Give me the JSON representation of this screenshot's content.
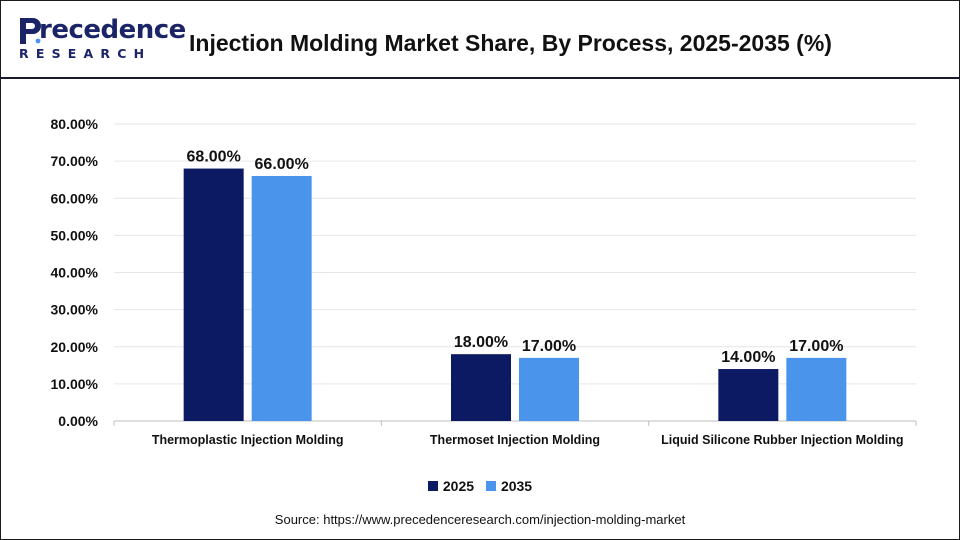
{
  "header": {
    "logo_top": "recedence",
    "logo_bottom": "RESEARCH",
    "title": "Injection Molding Market Share, By Process, 2025-2035 (%)"
  },
  "colors": {
    "brand": "#1a2466",
    "series_2025": "#0c1a63",
    "series_2035": "#4a94ec"
  },
  "chart_data": {
    "type": "bar",
    "title": "Injection Molding Market Share, By Process, 2025-2035 (%)",
    "categories": [
      "Thermoplastic Injection Molding",
      "Thermoset Injection Molding",
      "Liquid Silicone Rubber Injection Molding"
    ],
    "series": [
      {
        "name": "2025",
        "values": [
          68,
          18,
          14
        ],
        "labels": [
          "68.00%",
          "18.00%",
          "14.00%"
        ]
      },
      {
        "name": "2035",
        "values": [
          66,
          17,
          17
        ],
        "labels": [
          "66.00%",
          "17.00%",
          "17.00%"
        ]
      }
    ],
    "ylim": [
      0,
      80
    ],
    "yticks": [
      0,
      10,
      20,
      30,
      40,
      50,
      60,
      70,
      80
    ],
    "ytick_labels": [
      "0.00%",
      "10.00%",
      "20.00%",
      "30.00%",
      "40.00%",
      "50.00%",
      "60.00%",
      "70.00%",
      "80.00%"
    ],
    "grid": true,
    "legend": "bottom"
  },
  "legend": {
    "items": [
      {
        "label": "2025"
      },
      {
        "label": "2035"
      }
    ]
  },
  "source": "Source: https://www.precedenceresearch.com/injection-molding-market"
}
